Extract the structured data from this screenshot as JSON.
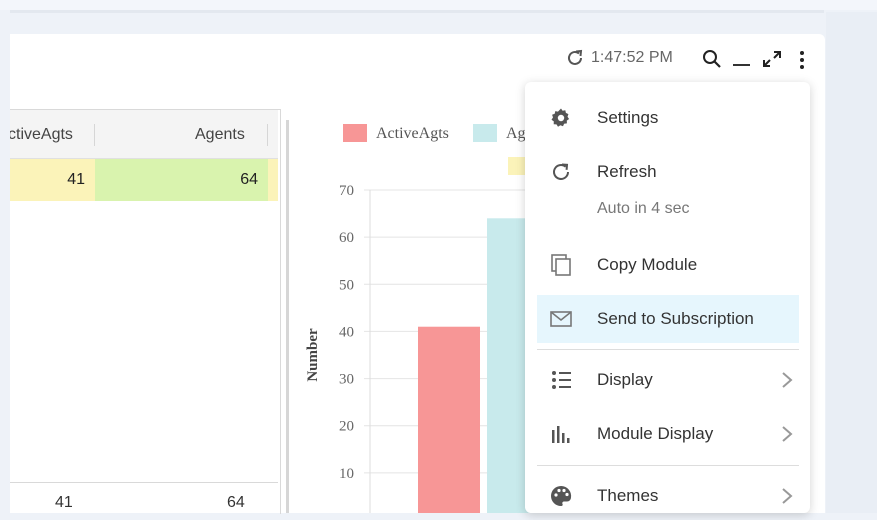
{
  "header": {
    "time": "1:47:52 PM",
    "icons": [
      "refresh-icon",
      "search-icon",
      "minimize-icon",
      "expand-icon",
      "kebab-menu-icon"
    ]
  },
  "table": {
    "columns": [
      "ctiveAgts",
      "Agents"
    ],
    "row": {
      "active": "41",
      "agents": "64"
    },
    "footer": {
      "active": "41",
      "agents": "64"
    },
    "colors": {
      "yellow": "#fbf3b9",
      "green": "#d9f3ae"
    }
  },
  "chart_data": {
    "type": "bar",
    "ylabel": "Number",
    "ylim": [
      0,
      70
    ],
    "yticks": [
      "70",
      "60",
      "50",
      "40",
      "30",
      "20",
      "10"
    ],
    "legend": [
      {
        "name": "ActiveAgts",
        "color": "#f79696"
      },
      {
        "name": "Ag",
        "color": "#c8eaec"
      }
    ],
    "series": [
      {
        "name": "ActiveAgts",
        "value": 41,
        "color": "#f79696"
      },
      {
        "name": "Agents",
        "value": 64,
        "color": "#c8eaec"
      }
    ]
  },
  "menu": {
    "settings": "Settings",
    "refresh": "Refresh",
    "refresh_sub": "Auto in 4 sec",
    "copy_module": "Copy Module",
    "send_to_subscription": "Send to Subscription",
    "display": "Display",
    "module_display": "Module Display",
    "themes": "Themes"
  }
}
